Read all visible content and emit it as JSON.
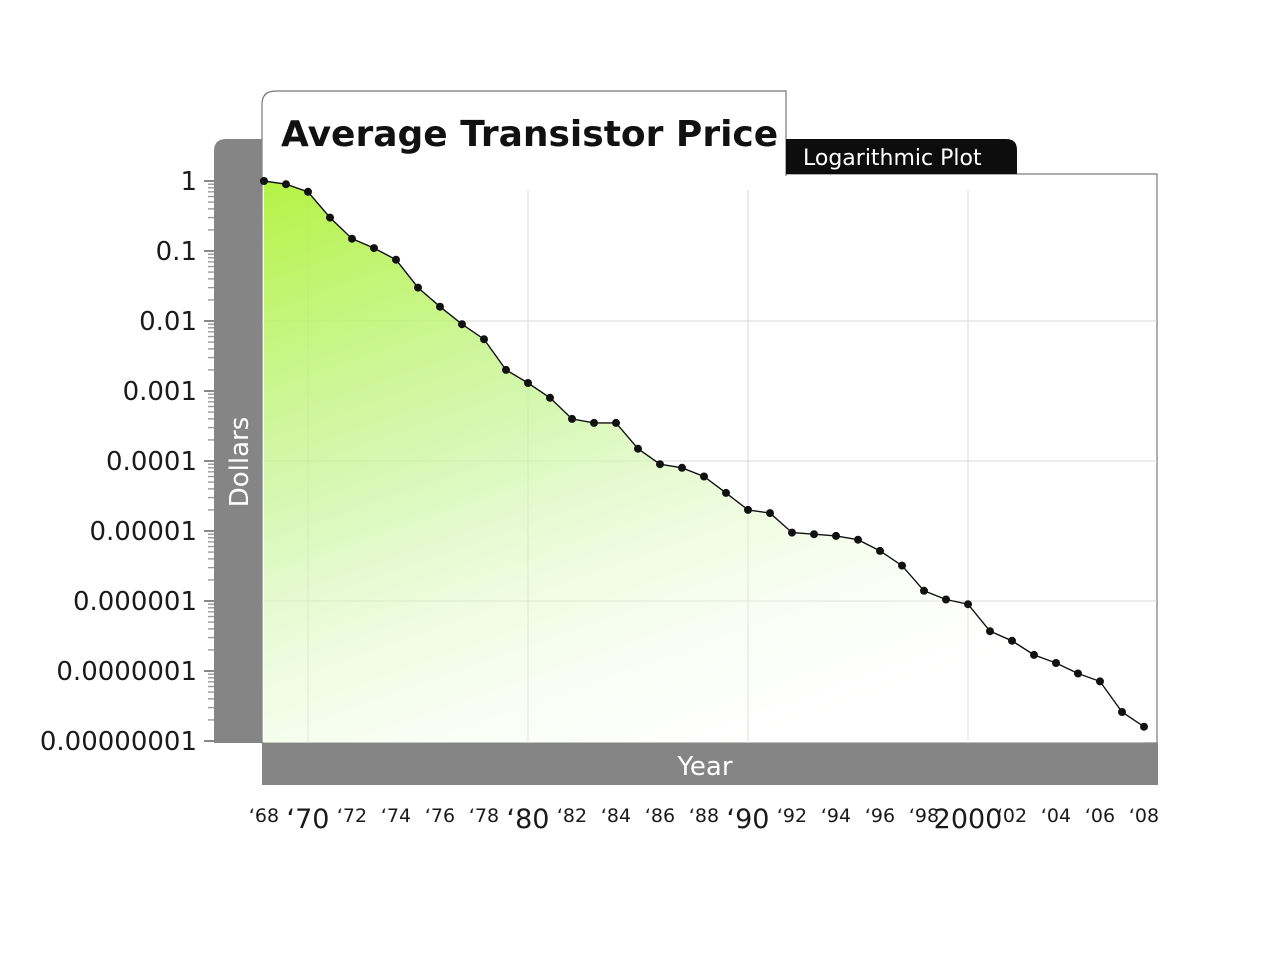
{
  "chart_data": {
    "type": "area",
    "title": "Average Transistor Price",
    "subtitle": "Logarithmic Plot",
    "xlabel": "Year",
    "ylabel": "Dollars",
    "yscale": "log",
    "ylim": [
      1e-08,
      1
    ],
    "xlim": [
      1968,
      2008
    ],
    "grid": true,
    "ytick_labels": [
      "1",
      "0.1",
      "0.01",
      "0.001",
      "0.0001",
      "0.00001",
      "0.000001",
      "0.0000001",
      "0.00000001"
    ],
    "xtick_labels": [
      "‘68",
      "‘70",
      "‘72",
      "‘74",
      "‘76",
      "‘78",
      "‘80",
      "‘82",
      "‘84",
      "‘86",
      "‘88",
      "‘90",
      "‘92",
      "‘94",
      "‘96",
      "‘98",
      "2000",
      "‘02",
      "‘04",
      "‘06",
      "‘08"
    ],
    "x": [
      1968,
      1969,
      1970,
      1971,
      1972,
      1973,
      1974,
      1975,
      1976,
      1977,
      1978,
      1979,
      1980,
      1981,
      1982,
      1983,
      1984,
      1985,
      1986,
      1987,
      1988,
      1989,
      1990,
      1991,
      1992,
      1993,
      1994,
      1995,
      1996,
      1997,
      1998,
      1999,
      2000,
      2001,
      2002,
      2003,
      2004,
      2005,
      2006,
      2007,
      2008
    ],
    "y": [
      1,
      0.9,
      0.7,
      0.3,
      0.15,
      0.11,
      0.075,
      0.03,
      0.016,
      0.009,
      0.0055,
      0.002,
      0.0013,
      0.0008,
      0.0004,
      0.00035,
      0.00035,
      0.00015,
      9e-05,
      8e-05,
      6e-05,
      3.5e-05,
      2e-05,
      1.8e-05,
      9.5e-06,
      9e-06,
      8.5e-06,
      7.5e-06,
      5.2e-06,
      3.2e-06,
      1.4e-06,
      1.05e-06,
      9e-07,
      3.7e-07,
      2.7e-07,
      1.7e-07,
      1.3e-07,
      9.2e-08,
      7.1e-08,
      2.6e-08,
      1.6e-08
    ],
    "colors": {
      "fill": "#a8f060",
      "line": "#111111",
      "frame": "#888888",
      "grid": "#d8d8d8"
    }
  }
}
